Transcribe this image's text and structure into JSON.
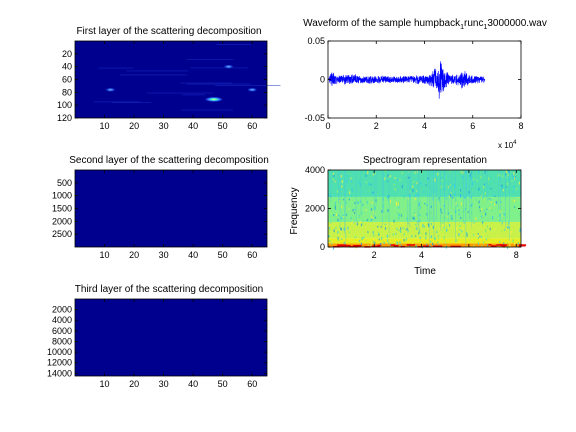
{
  "figure": {
    "background": "#ffffff"
  },
  "chart_data": [
    {
      "type": "heatmap",
      "title": "First layer of the scattering decomposition",
      "xlim": [
        0,
        65
      ],
      "ylim": [
        120,
        0
      ],
      "xticks": [
        10,
        20,
        30,
        40,
        50,
        60
      ],
      "xtick_labels": [
        "10",
        "20",
        "30",
        "40",
        "50",
        "60"
      ],
      "yticks": [
        20,
        40,
        60,
        80,
        100,
        120
      ],
      "ytick_labels": [
        "20",
        "40",
        "60",
        "80",
        "100",
        "120"
      ],
      "colormap": "jet",
      "background_color": "#00008f",
      "hotspots": [
        {
          "x": 47,
          "y": 91,
          "intensity": 0.9
        },
        {
          "x": 12,
          "y": 76,
          "intensity": 0.5
        },
        {
          "x": 60,
          "y": 76,
          "intensity": 0.45
        },
        {
          "x": 52,
          "y": 40,
          "intensity": 0.3
        }
      ]
    },
    {
      "type": "line",
      "title": "Waveform of the sample humpback_runc_3000000.wav",
      "title_parts": {
        "a": "Waveform of the sample humpback",
        "sub1": "1",
        "b": "runc",
        "sub2": "1",
        "c": "3000000.wav"
      },
      "xlim": [
        0,
        80000
      ],
      "ylim": [
        -0.05,
        0.05
      ],
      "xticks": [
        0,
        20000,
        40000,
        60000,
        80000
      ],
      "xtick_labels": [
        "0",
        "2",
        "4",
        "6",
        "8"
      ],
      "x_multiplier": {
        "base": "x 10",
        "exp": "4"
      },
      "yticks": [
        -0.05,
        0,
        0.05
      ],
      "ytick_labels": [
        "-0.05",
        "0",
        "0.05"
      ],
      "color": "#0000ff",
      "signal_length": 65000,
      "envelope": [
        {
          "x": 0,
          "amp": 0.002
        },
        {
          "x": 1500,
          "amp": 0.012
        },
        {
          "x": 3000,
          "amp": 0.006
        },
        {
          "x": 6000,
          "amp": 0.007
        },
        {
          "x": 10000,
          "amp": 0.008
        },
        {
          "x": 15000,
          "amp": 0.006
        },
        {
          "x": 20000,
          "amp": 0.006
        },
        {
          "x": 25000,
          "amp": 0.005
        },
        {
          "x": 30000,
          "amp": 0.005
        },
        {
          "x": 35000,
          "amp": 0.006
        },
        {
          "x": 40000,
          "amp": 0.006
        },
        {
          "x": 43000,
          "amp": 0.01
        },
        {
          "x": 45500,
          "amp": 0.022
        },
        {
          "x": 46500,
          "amp": 0.04
        },
        {
          "x": 47500,
          "amp": 0.02
        },
        {
          "x": 50000,
          "amp": 0.007
        },
        {
          "x": 54000,
          "amp": 0.008
        },
        {
          "x": 56000,
          "amp": 0.016
        },
        {
          "x": 58000,
          "amp": 0.009
        },
        {
          "x": 61000,
          "amp": 0.006
        },
        {
          "x": 65000,
          "amp": 0.005
        }
      ]
    },
    {
      "type": "heatmap",
      "title": "Second layer of the scattering decomposition",
      "xlim": [
        0,
        65
      ],
      "ylim": [
        3000,
        0
      ],
      "xticks": [
        10,
        20,
        30,
        40,
        50,
        60
      ],
      "xtick_labels": [
        "10",
        "20",
        "30",
        "40",
        "50",
        "60"
      ],
      "yticks": [
        500,
        1000,
        1500,
        2000,
        2500
      ],
      "ytick_labels": [
        "500",
        "1000",
        "1500",
        "2000",
        "2500"
      ],
      "colormap": "jet",
      "background_color": "#00008f"
    },
    {
      "type": "heatmap",
      "title": "Spectrogram representation",
      "xlim": [
        0.05,
        8.2
      ],
      "ylim": [
        0,
        4000
      ],
      "xticks": [
        2,
        4,
        6,
        8
      ],
      "xtick_labels": [
        "2",
        "4",
        "6",
        "8"
      ],
      "yticks": [
        0,
        2000,
        4000
      ],
      "ytick_labels": [
        "0",
        "2000",
        "4000"
      ],
      "xlabel": "Time",
      "ylabel": "Frequency",
      "colormap": "jet",
      "bands": [
        {
          "from": 0,
          "to": 180,
          "color": "#ff9a00"
        },
        {
          "from": 180,
          "to": 450,
          "color": "#e6ee20"
        },
        {
          "from": 450,
          "to": 1300,
          "color": "#c8f24a"
        },
        {
          "from": 1300,
          "to": 2600,
          "color": "#7ff08a"
        },
        {
          "from": 2600,
          "to": 4000,
          "color": "#50e0b0"
        }
      ]
    },
    {
      "type": "heatmap",
      "title": "Third layer of the scattering decomposition",
      "xlim": [
        0,
        65
      ],
      "ylim": [
        14500,
        0
      ],
      "xticks": [
        10,
        20,
        30,
        40,
        50,
        60
      ],
      "xtick_labels": [
        "10",
        "20",
        "30",
        "40",
        "50",
        "60"
      ],
      "yticks": [
        2000,
        4000,
        6000,
        8000,
        10000,
        12000,
        14000
      ],
      "ytick_labels": [
        "2000",
        "4000",
        "6000",
        "8000",
        "10000",
        "12000",
        "14000"
      ],
      "colormap": "jet",
      "background_color": "#00008f"
    }
  ]
}
